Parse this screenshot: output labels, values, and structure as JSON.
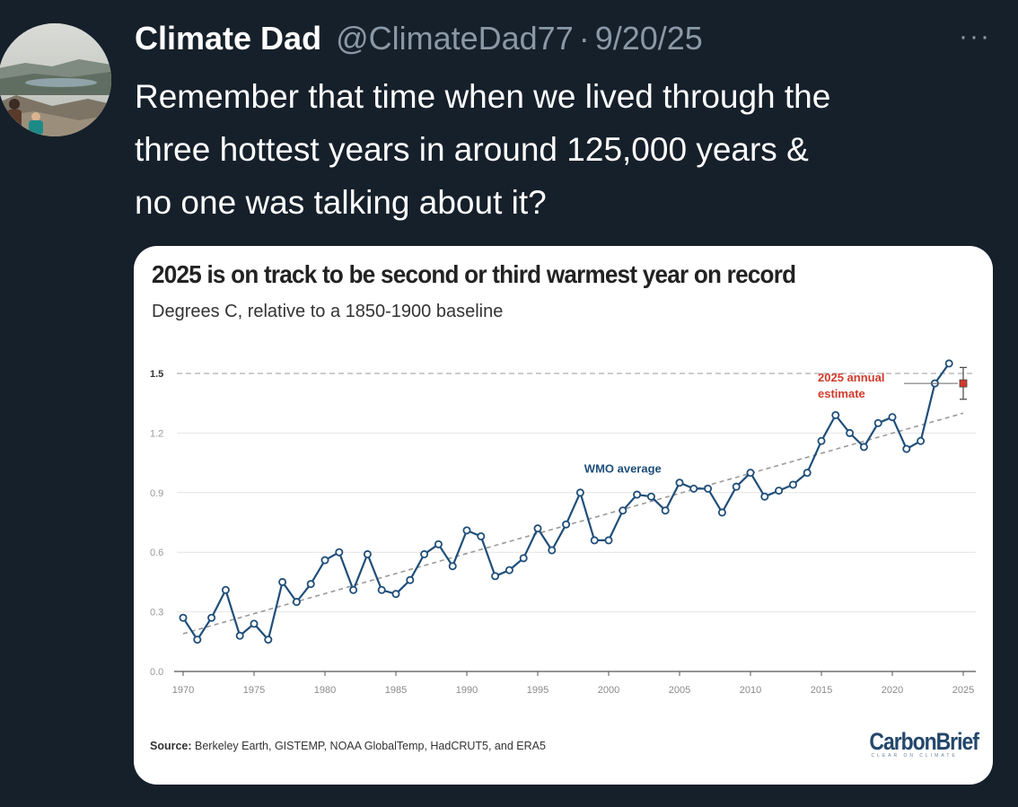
{
  "tweet": {
    "display_name": "Climate Dad",
    "handle": "@ClimateDad77",
    "separator": "·",
    "date": "9/20/25",
    "more_icon": "···",
    "text": "Remember that time when we lived through the\nthree hottest years in around 125,000 years &\nno one was talking about it?"
  },
  "chart": {
    "title": "2025 is on track to be second or third warmest year on record",
    "subtitle": "Degrees C, relative to a 1850-1900 baseline",
    "source_label": "Source:",
    "source_text": " Berkeley Earth, GISTEMP, NOAA GlobalTemp, HadCRUT5, and ERA5",
    "logo": "CarbonBrief",
    "logo_tagline": "CLEAR ON CLIMATE"
  },
  "chart_data": {
    "type": "line",
    "title": "2025 is on track to be second or third warmest year on record",
    "subtitle": "Degrees C, relative to a 1850-1900 baseline",
    "xlabel": "",
    "ylabel": "",
    "xlim": [
      1969,
      2025.5
    ],
    "ylim": [
      0,
      1.5
    ],
    "x_ticks": [
      1970,
      1975,
      1980,
      1985,
      1990,
      1995,
      2000,
      2005,
      2010,
      2015,
      2020,
      2025
    ],
    "y_ticks": [
      0.0,
      0.3,
      0.6,
      0.9,
      1.2,
      1.5
    ],
    "y_tick_labels": [
      "0.0",
      "0.3",
      "0.6",
      "0.9",
      "1.2",
      "1.5"
    ],
    "grid": true,
    "series": [
      {
        "name": "WMO average",
        "color": "#1f4e79",
        "x": [
          1970,
          1971,
          1972,
          1973,
          1974,
          1975,
          1976,
          1977,
          1978,
          1979,
          1980,
          1981,
          1982,
          1983,
          1984,
          1985,
          1986,
          1987,
          1988,
          1989,
          1990,
          1991,
          1992,
          1993,
          1994,
          1995,
          1996,
          1997,
          1998,
          1999,
          2000,
          2001,
          2002,
          2003,
          2004,
          2005,
          2006,
          2007,
          2008,
          2009,
          2010,
          2011,
          2012,
          2013,
          2014,
          2015,
          2016,
          2017,
          2018,
          2019,
          2020,
          2021,
          2022,
          2023,
          2024
        ],
        "y": [
          0.27,
          0.16,
          0.27,
          0.41,
          0.18,
          0.24,
          0.16,
          0.45,
          0.35,
          0.44,
          0.56,
          0.6,
          0.41,
          0.59,
          0.41,
          0.39,
          0.46,
          0.59,
          0.64,
          0.53,
          0.71,
          0.68,
          0.48,
          0.51,
          0.57,
          0.72,
          0.61,
          0.74,
          0.9,
          0.66,
          0.66,
          0.81,
          0.89,
          0.88,
          0.81,
          0.95,
          0.92,
          0.92,
          0.8,
          0.93,
          1.0,
          0.88,
          0.91,
          0.94,
          1.0,
          1.16,
          1.29,
          1.2,
          1.13,
          1.25,
          1.28,
          1.12,
          1.16,
          1.45,
          1.55
        ]
      }
    ],
    "trend": {
      "x": [
        1970,
        2025
      ],
      "y": [
        0.19,
        1.3
      ],
      "style": "dashed",
      "color": "#9a9a9a"
    },
    "reference_line": {
      "y": 1.5,
      "style": "dashed",
      "color": "#bbbbbb"
    },
    "estimate": {
      "label_line1": "2025 annual",
      "label_line2": "estimate",
      "x": 2025,
      "y": 1.45,
      "y_low": 1.37,
      "y_high": 1.53,
      "color": "#d33a2c"
    },
    "annotations": [
      {
        "text": "WMO average",
        "x": 2001,
        "y": 1.0
      }
    ]
  }
}
